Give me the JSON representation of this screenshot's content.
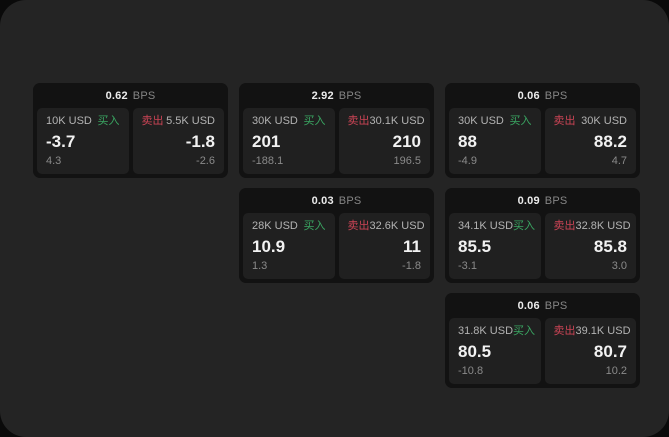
{
  "colors": {
    "outer_bg": "#0a0a0a",
    "page_bg": "#242424",
    "card_bg": "#121212",
    "panel_bg": "#202020",
    "buy_green": "#3aa662",
    "sell_red": "#cb4455",
    "primary_text": "#f2f2f2",
    "muted_text": "#8a8a8a"
  },
  "cards": [
    {
      "bps_value": "0.62",
      "bps_unit": "BPS",
      "buy": {
        "amount": "10K USD",
        "side_label": "买入",
        "price": "-3.7",
        "delta": "4.3"
      },
      "sell": {
        "side_label": "卖出",
        "amount": "5.5K USD",
        "price": "-1.8",
        "delta": "-2.6"
      }
    },
    {
      "bps_value": "2.92",
      "bps_unit": "BPS",
      "buy": {
        "amount": "30K USD",
        "side_label": "买入",
        "price": "201",
        "delta": "-188.1"
      },
      "sell": {
        "side_label": "卖出",
        "amount": "30.1K USD",
        "price": "210",
        "delta": "196.5"
      }
    },
    {
      "bps_value": "0.06",
      "bps_unit": "BPS",
      "buy": {
        "amount": "30K USD",
        "side_label": "买入",
        "price": "88",
        "delta": "-4.9"
      },
      "sell": {
        "side_label": "卖出",
        "amount": "30K USD",
        "price": "88.2",
        "delta": "4.7"
      }
    },
    {
      "bps_value": "0.03",
      "bps_unit": "BPS",
      "buy": {
        "amount": "28K USD",
        "side_label": "买入",
        "price": "10.9",
        "delta": "1.3"
      },
      "sell": {
        "side_label": "卖出",
        "amount": "32.6K USD",
        "price": "11",
        "delta": "-1.8"
      }
    },
    {
      "bps_value": "0.09",
      "bps_unit": "BPS",
      "buy": {
        "amount": "34.1K USD",
        "side_label": "买入",
        "price": "85.5",
        "delta": "-3.1"
      },
      "sell": {
        "side_label": "卖出",
        "amount": "32.8K USD",
        "price": "85.8",
        "delta": "3.0"
      }
    },
    {
      "bps_value": "0.06",
      "bps_unit": "BPS",
      "buy": {
        "amount": "31.8K USD",
        "side_label": "买入",
        "price": "80.5",
        "delta": "-10.8"
      },
      "sell": {
        "side_label": "卖出",
        "amount": "39.1K USD",
        "price": "80.7",
        "delta": "10.2"
      }
    }
  ]
}
